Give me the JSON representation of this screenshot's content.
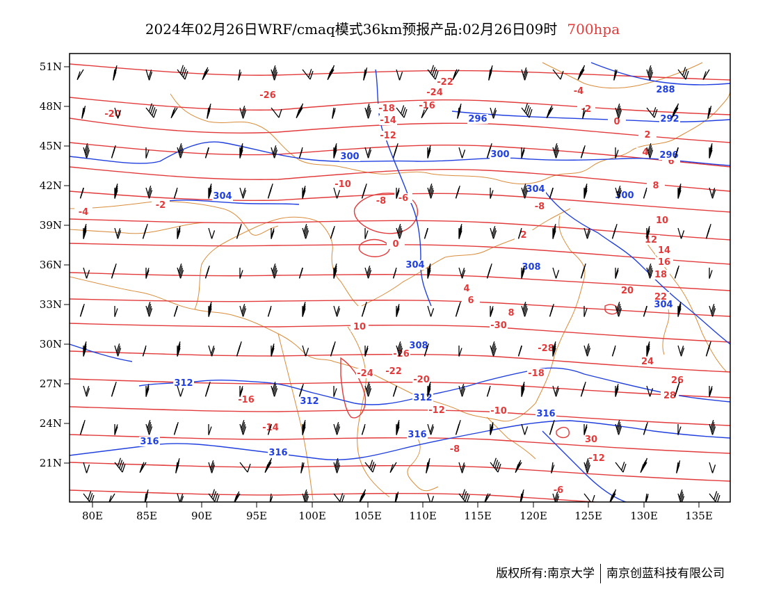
{
  "title": {
    "main": "2024年02月26日WRF/cmaq模式36km预报产品:02月26日09时",
    "level": "700hpa"
  },
  "axes": {
    "lon_labels": [
      "80E",
      "85E",
      "90E",
      "95E",
      "100E",
      "105E",
      "110E",
      "115E",
      "120E",
      "125E",
      "130E",
      "135E"
    ],
    "lat_labels": [
      "21N",
      "24N",
      "27N",
      "30N",
      "33N",
      "36N",
      "39N",
      "42N",
      "45N",
      "48N",
      "51N"
    ]
  },
  "colors": {
    "temperature": "#e23a3a",
    "geopotential": "#1f3fe0",
    "boundary": "#d98c3a",
    "wind": "#000000"
  },
  "temperature_labels": [
    "-26",
    "-24",
    "-22",
    "-20",
    "-18",
    "-16",
    "-14",
    "-12",
    "-10",
    "-8",
    "-6",
    "-4",
    "-2",
    "0",
    "2",
    "4",
    "6",
    "8",
    "10",
    "-30",
    "-28",
    "-26",
    "-24",
    "-22",
    "-20",
    "-18",
    "-16",
    "-14",
    "-12",
    "-10",
    "-8",
    "-6",
    "-4",
    "-2",
    "0",
    "2",
    "4",
    "6",
    "8",
    "10",
    "12",
    "14",
    "16",
    "18",
    "20",
    "22",
    "24",
    "26",
    "28",
    "30",
    "-12",
    "-8",
    "-16"
  ],
  "geopotential_labels": [
    "288",
    "292",
    "296",
    "296",
    "300",
    "300",
    "300",
    "304",
    "304",
    "304",
    "304",
    "308",
    "308",
    "312",
    "312",
    "312",
    "316",
    "316",
    "316",
    "316"
  ],
  "footer": {
    "left": "版权所有:南京大学",
    "right": "南京创蓝科技有限公司"
  }
}
